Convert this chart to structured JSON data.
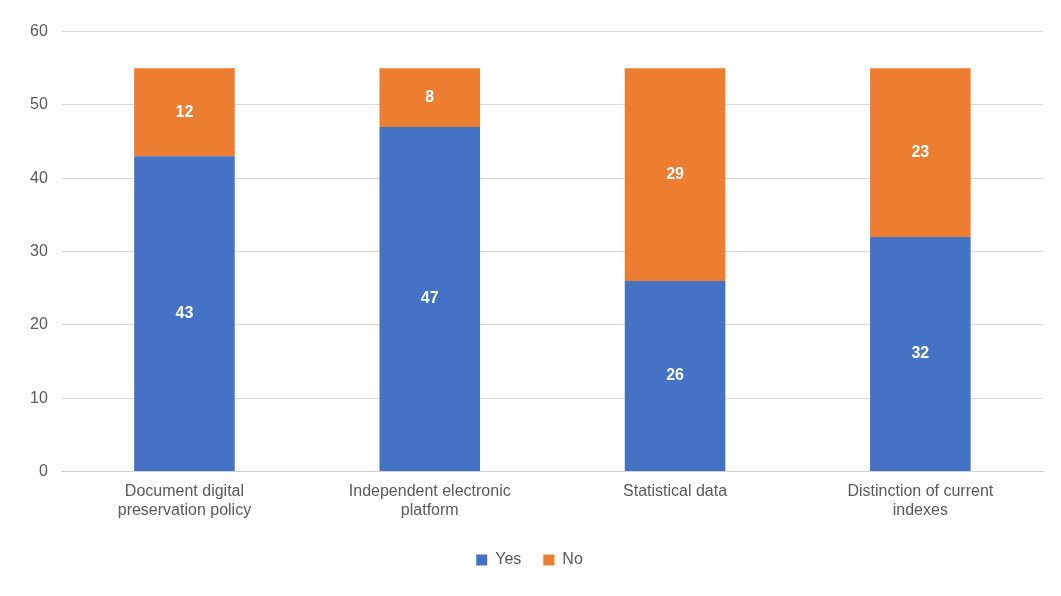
{
  "chart_data": {
    "type": "bar",
    "categories": [
      "Document digital preservation policy",
      "Independent electronic platform",
      "Statistical data",
      "Distinction of current indexes"
    ],
    "series": [
      {
        "name": "Yes",
        "color": "#4472c4",
        "values": [
          43,
          47,
          26,
          32
        ]
      },
      {
        "name": "No",
        "color": "#ed7d31",
        "values": [
          12,
          8,
          29,
          23
        ]
      }
    ],
    "stacked": true,
    "ylim": [
      0,
      60
    ],
    "yticks": [
      0,
      10,
      20,
      30,
      40,
      50,
      60
    ],
    "grid": "y",
    "legend": "bottom",
    "data_labels": true
  }
}
